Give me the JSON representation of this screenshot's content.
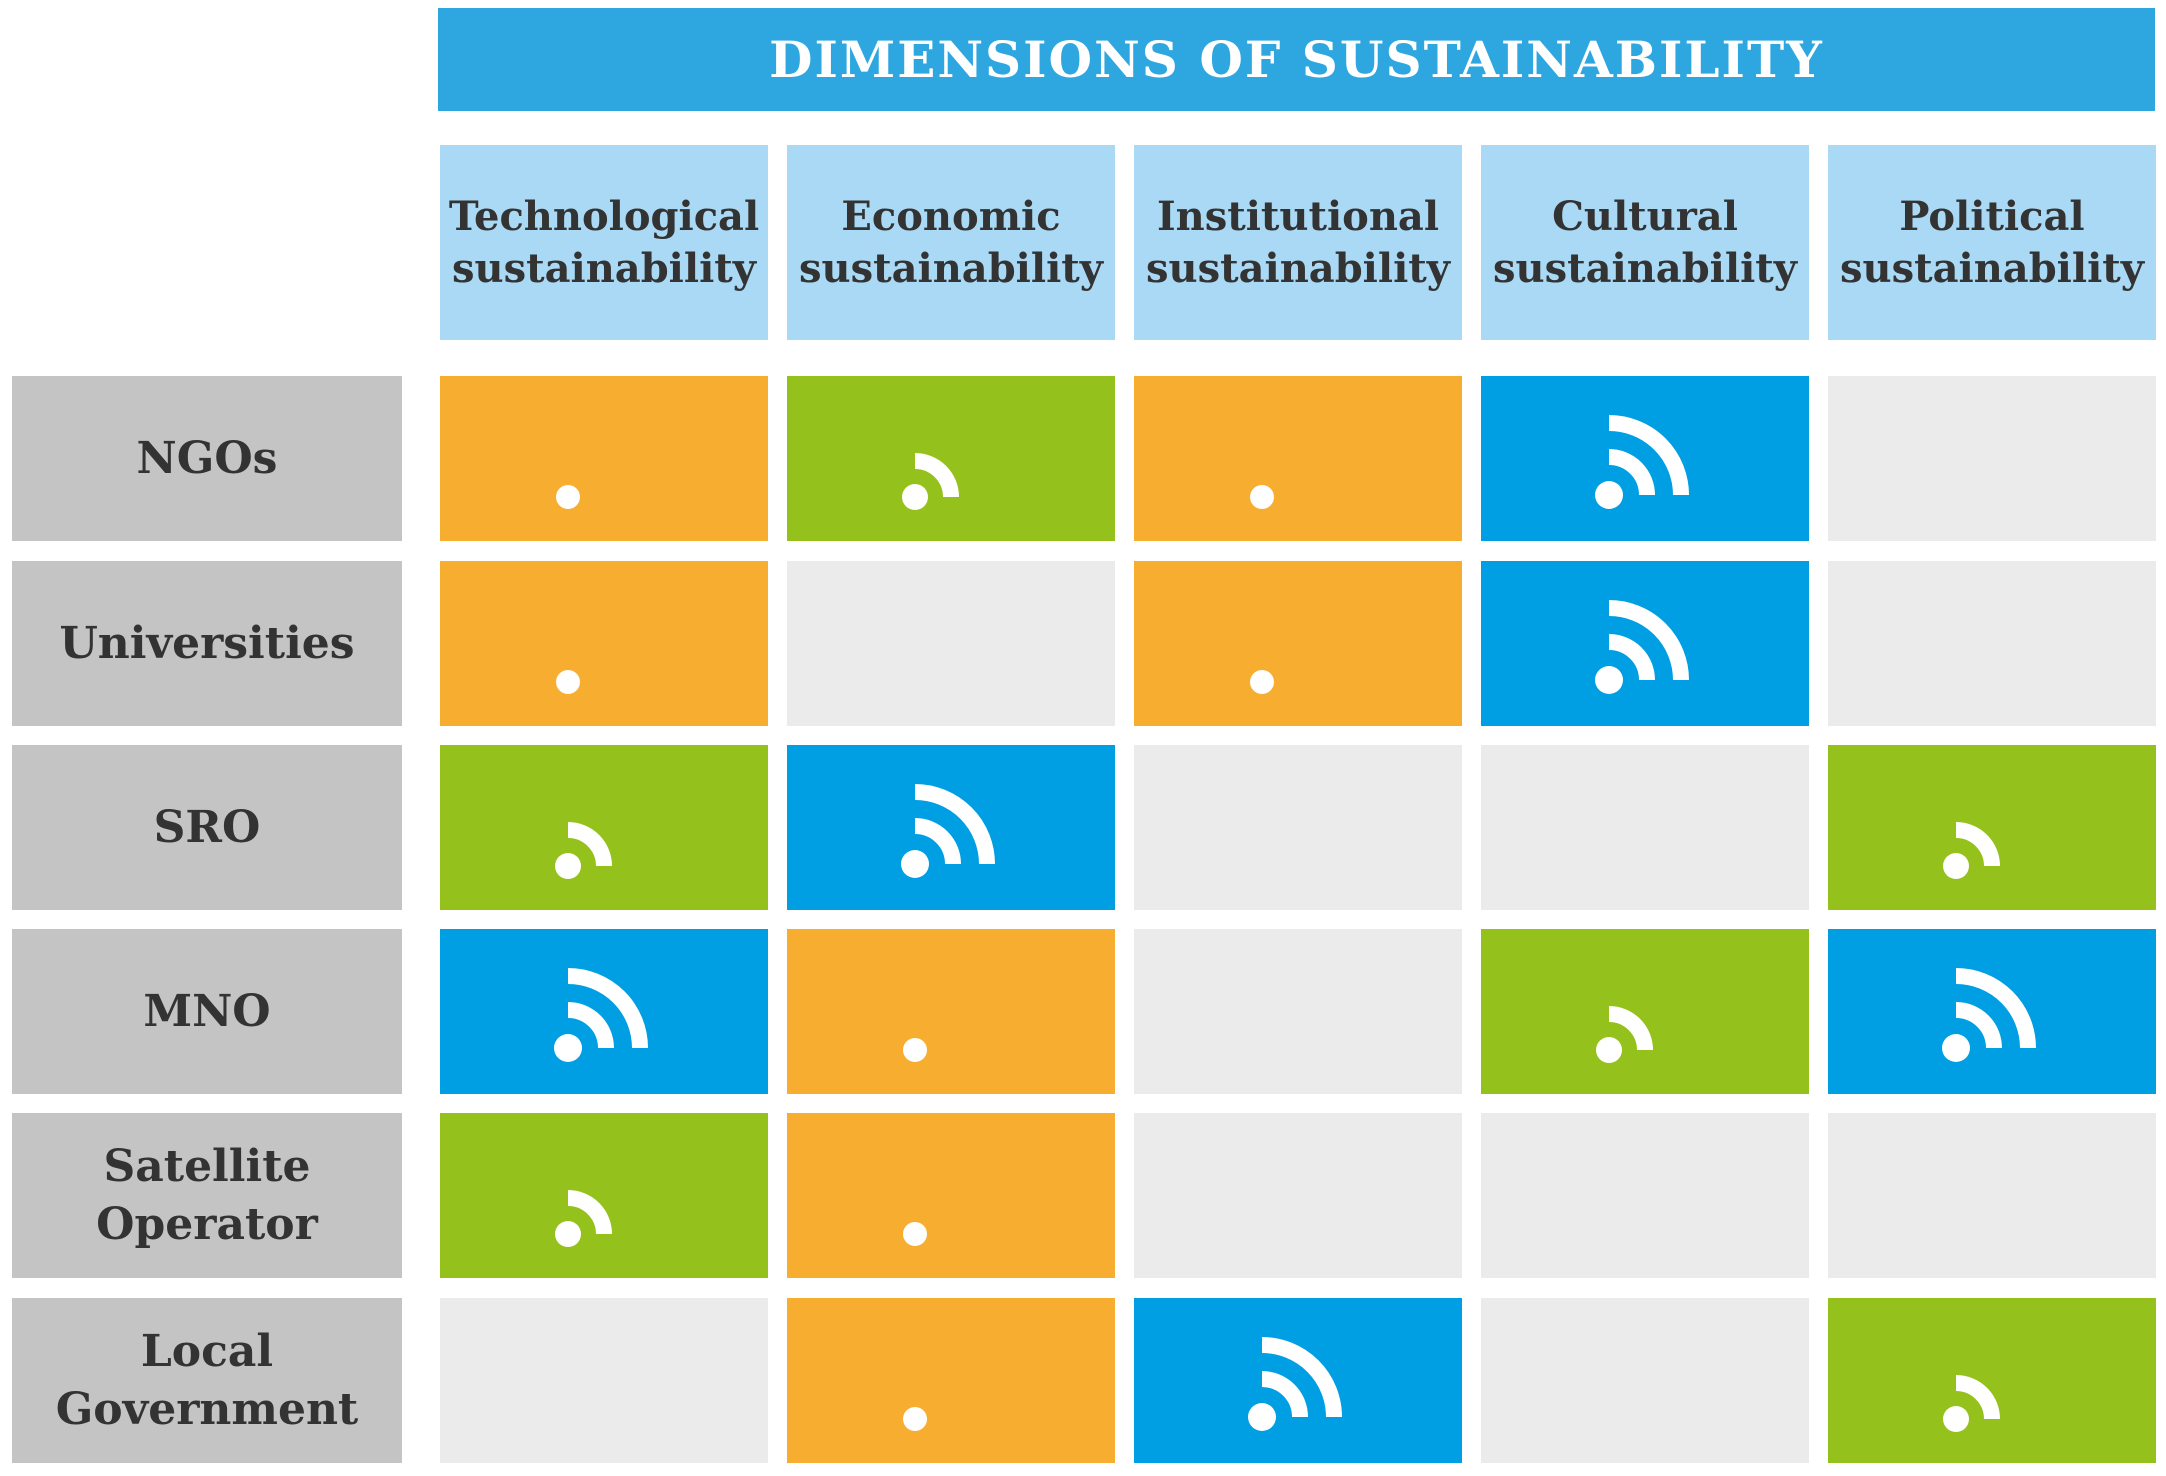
{
  "title": "DIMENSIONS OF SUSTAINABILITY",
  "columns": [
    "Technological\nsustainability",
    "Economic\nsustainability",
    "Institutional\nsustainability",
    "Cultural\nsustainability",
    "Political\nsustainability"
  ],
  "rows": [
    "NGOs",
    "Universities",
    "SRO",
    "MNO",
    "Satellite\nOperator",
    "Local\nGovernment"
  ],
  "levels": [
    [
      1,
      2,
      1,
      3,
      0
    ],
    [
      1,
      0,
      1,
      3,
      0
    ],
    [
      2,
      3,
      0,
      0,
      2
    ],
    [
      3,
      1,
      0,
      2,
      3
    ],
    [
      2,
      1,
      0,
      0,
      0
    ],
    [
      0,
      1,
      3,
      0,
      2
    ]
  ],
  "level_icons": {
    "0": "",
    "1": "dot-icon",
    "2": "signal-medium-icon",
    "3": "signal-strong-icon"
  },
  "colors": {
    "title_bar": "#2ea7e0",
    "column_header": "#a9d9f4",
    "row_header": "#c4c4c4",
    "empty_cell": "#ebebeb",
    "level_1": "#f6ad30",
    "level_2": "#94c11c",
    "level_3": "#009fe3"
  }
}
